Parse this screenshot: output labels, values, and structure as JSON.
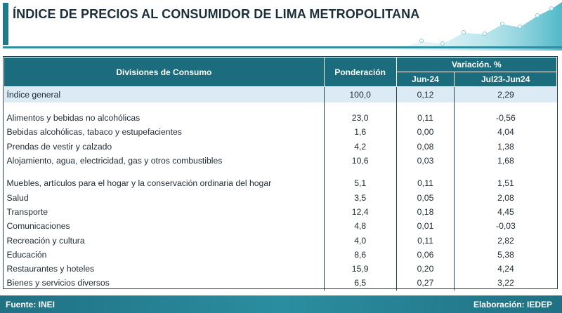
{
  "title": "ÍNDICE DE PRECIOS AL CONSUMIDOR DE LIMA METROPOLITANA",
  "colors": {
    "teal": "#1b6d7d",
    "highlight": "#dbeaf5",
    "wave": "#4fb8c8"
  },
  "table": {
    "headers": {
      "division": "Divisiones de Consumo",
      "ponderacion": "Ponderación",
      "variacion": "Variación. %",
      "jun": "Jun-24",
      "jul": "Jul23-Jun24"
    },
    "general": {
      "label": "Índice general",
      "ponderacion": "100,0",
      "jun": "0,12",
      "jul": "2,29"
    },
    "group1": [
      {
        "label": "Alimentos y bebidas no alcohólicas",
        "ponderacion": "23,0",
        "jun": "0,11",
        "jul": "-0,56"
      },
      {
        "label": "Bebidas alcohólicas, tabaco y estupefacientes",
        "ponderacion": "1,6",
        "jun": "0,00",
        "jul": "4,04"
      },
      {
        "label": "Prendas de vestir y calzado",
        "ponderacion": "4,2",
        "jun": "0,08",
        "jul": "1,38"
      },
      {
        "label": "Alojamiento, agua, electricidad, gas y otros combustibles",
        "ponderacion": "10,6",
        "jun": "0,03",
        "jul": "1,68"
      }
    ],
    "group2": [
      {
        "label": "Muebles, artículos para el hogar y la conservación ordinaria del hogar",
        "ponderacion": "5,1",
        "jun": "0,11",
        "jul": "1,51"
      },
      {
        "label": "Salud",
        "ponderacion": "3,5",
        "jun": "0,05",
        "jul": "2,08"
      },
      {
        "label": "Transporte",
        "ponderacion": "12,4",
        "jun": "0,18",
        "jul": "4,45"
      },
      {
        "label": "Comunicaciones",
        "ponderacion": "4,8",
        "jun": "0,01",
        "jul": "-0,03"
      },
      {
        "label": "Recreación y cultura",
        "ponderacion": "4,0",
        "jun": "0,11",
        "jul": "2,82"
      },
      {
        "label": "Educación",
        "ponderacion": "8,6",
        "jun": "0,06",
        "jul": "5,38"
      },
      {
        "label": "Restaurantes y hoteles",
        "ponderacion": "15,9",
        "jun": "0,20",
        "jul": "4,24"
      },
      {
        "label": "Bienes y servicios diversos",
        "ponderacion": "6,5",
        "jun": "0,27",
        "jul": "3,22"
      }
    ]
  },
  "footer": {
    "source": "Fuente: INEI",
    "credit": "Elaboración: IEDEP"
  }
}
